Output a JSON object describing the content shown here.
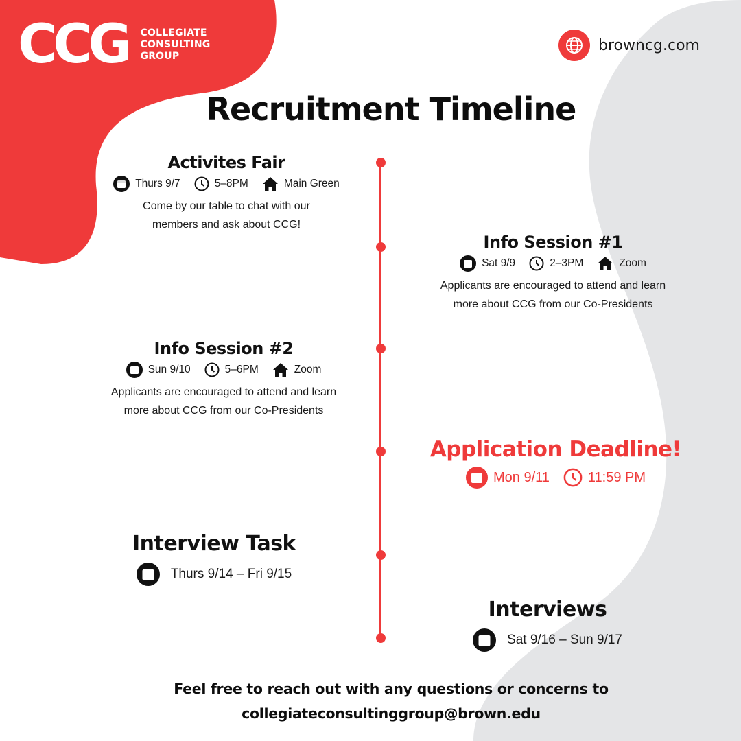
{
  "brand": {
    "logo_mark": "CCG",
    "logo_lines": [
      "COLLEGIATE",
      "CONSULTING",
      "GROUP"
    ],
    "website": "browncg.com",
    "colors": {
      "accent": "#ef3a3a",
      "grey_shape": "#e4e5e7"
    }
  },
  "title": "Recruitment Timeline",
  "events": [
    {
      "title": "Activites Fair",
      "date": "Thurs 9/7",
      "time": "5–8PM",
      "location": "Main Green",
      "description_lines": [
        "Come by our table to chat with our",
        "members and ask about CCG!"
      ]
    },
    {
      "title": "Info Session #1",
      "date": "Sat 9/9",
      "time": "2–3PM",
      "location": "Zoom",
      "description_lines": [
        "Applicants are encouraged to attend and learn",
        "more about CCG from our Co-Presidents"
      ]
    },
    {
      "title": "Info Session #2",
      "date": "Sun 9/10",
      "time": "5–6PM",
      "location": "Zoom",
      "description_lines": [
        "Applicants are encouraged to attend and learn",
        "more about CCG from our Co-Presidents"
      ]
    },
    {
      "title": "Application Deadline!",
      "date": "Mon 9/11",
      "time": "11:59 PM"
    },
    {
      "title": "Interview Task",
      "date": "Thurs 9/14 – Fri 9/15"
    },
    {
      "title": "Interviews",
      "date": "Sat 9/16 – Sun 9/17"
    }
  ],
  "footer": {
    "line1": "Feel free to reach out with any questions or concerns to",
    "email": "collegiateconsultinggroup@brown.edu"
  },
  "icons": [
    "calendar-icon",
    "clock-icon",
    "home-icon",
    "globe-icon"
  ]
}
